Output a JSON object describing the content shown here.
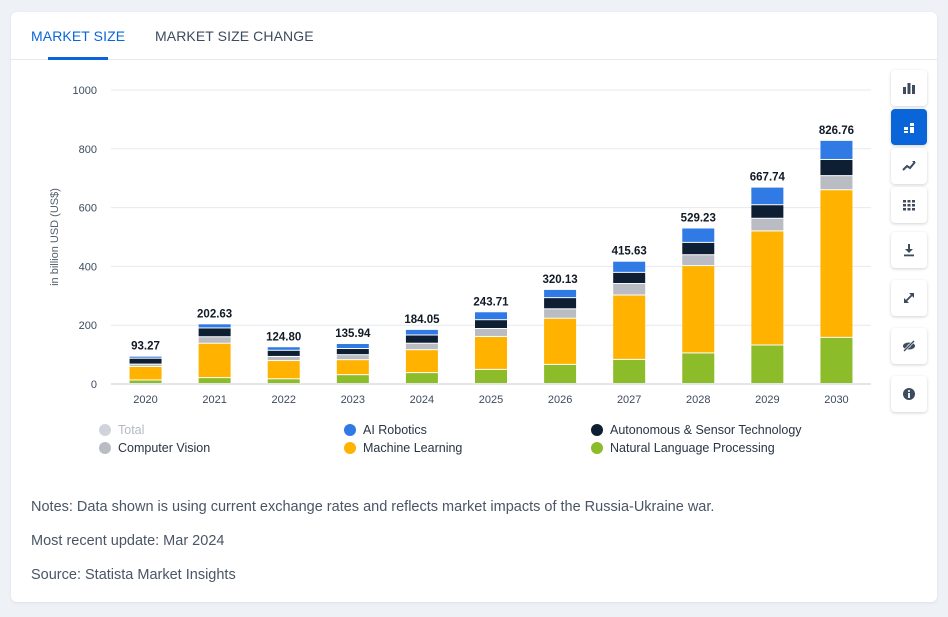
{
  "tabs": [
    {
      "label": "MARKET SIZE",
      "active": true
    },
    {
      "label": "MARKET SIZE CHANGE",
      "active": false
    }
  ],
  "chart_data": {
    "type": "bar",
    "stacked": true,
    "ylabel": "in billion USD (US$)",
    "ylim": [
      0,
      1000
    ],
    "yticks": [
      0,
      200,
      400,
      600,
      800,
      1000
    ],
    "categories": [
      "2020",
      "2021",
      "2022",
      "2023",
      "2024",
      "2025",
      "2026",
      "2027",
      "2028",
      "2029",
      "2030"
    ],
    "totals": [
      "93.27",
      "202.63",
      "124.80",
      "135.94",
      "184.05",
      "243.71",
      "320.13",
      "415.63",
      "529.23",
      "667.74",
      "826.76"
    ],
    "series": [
      {
        "name": "Natural Language Processing",
        "color": "#8cbc2a",
        "values": [
          12,
          20,
          16,
          30,
          37,
          48,
          65,
          82,
          104,
          131,
          157
        ]
      },
      {
        "name": "Machine Learning",
        "color": "#ffb200",
        "values": [
          46,
          117,
          62,
          51,
          78,
          112,
          157,
          219,
          297,
          388,
          502
        ]
      },
      {
        "name": "Computer Vision",
        "color": "#b9bcc2",
        "values": [
          8,
          22,
          14,
          17,
          22,
          27,
          32,
          39,
          37,
          43,
          48
        ]
      },
      {
        "name": "Autonomous & Sensor Technology",
        "color": "#0f1f33",
        "values": [
          20,
          30,
          21,
          21,
          28,
          30,
          38,
          38,
          42,
          46,
          55
        ]
      },
      {
        "name": "AI Robotics",
        "color": "#2f7ae5",
        "values": [
          7,
          14,
          12,
          17,
          19,
          27,
          28,
          38,
          49,
          60,
          65
        ]
      }
    ],
    "legend": [
      {
        "name": "Total",
        "color": "#d0d4da",
        "disabled": true
      },
      {
        "name": "AI Robotics",
        "color": "#2f7ae5"
      },
      {
        "name": "Autonomous & Sensor Technology",
        "color": "#0f1f33"
      },
      {
        "name": "Computer Vision",
        "color": "#b9bcc2"
      },
      {
        "name": "Machine Learning",
        "color": "#ffb200"
      },
      {
        "name": "Natural Language Processing",
        "color": "#8cbc2a"
      }
    ],
    "grid": true
  },
  "notes": {
    "line1": "Notes: Data shown is using current exchange rates and reflects market impacts of the Russia-Ukraine war.",
    "line2": "Most recent update: Mar 2024",
    "line3": "Source: Statista Market Insights"
  },
  "sidebar": {
    "buttons": [
      {
        "icon": "bar-chart-icon",
        "active": false
      },
      {
        "icon": "stacked-bar-icon",
        "active": true
      },
      {
        "icon": "trend-line-icon",
        "active": false
      },
      {
        "icon": "table-grid-icon",
        "active": false
      },
      {
        "icon": "download-icon",
        "active": false
      },
      {
        "icon": "fullscreen-icon",
        "active": false
      },
      {
        "icon": "hide-eye-icon",
        "active": false
      },
      {
        "icon": "info-icon",
        "active": false
      }
    ]
  },
  "colors": {
    "accent": "#0a66d8"
  }
}
